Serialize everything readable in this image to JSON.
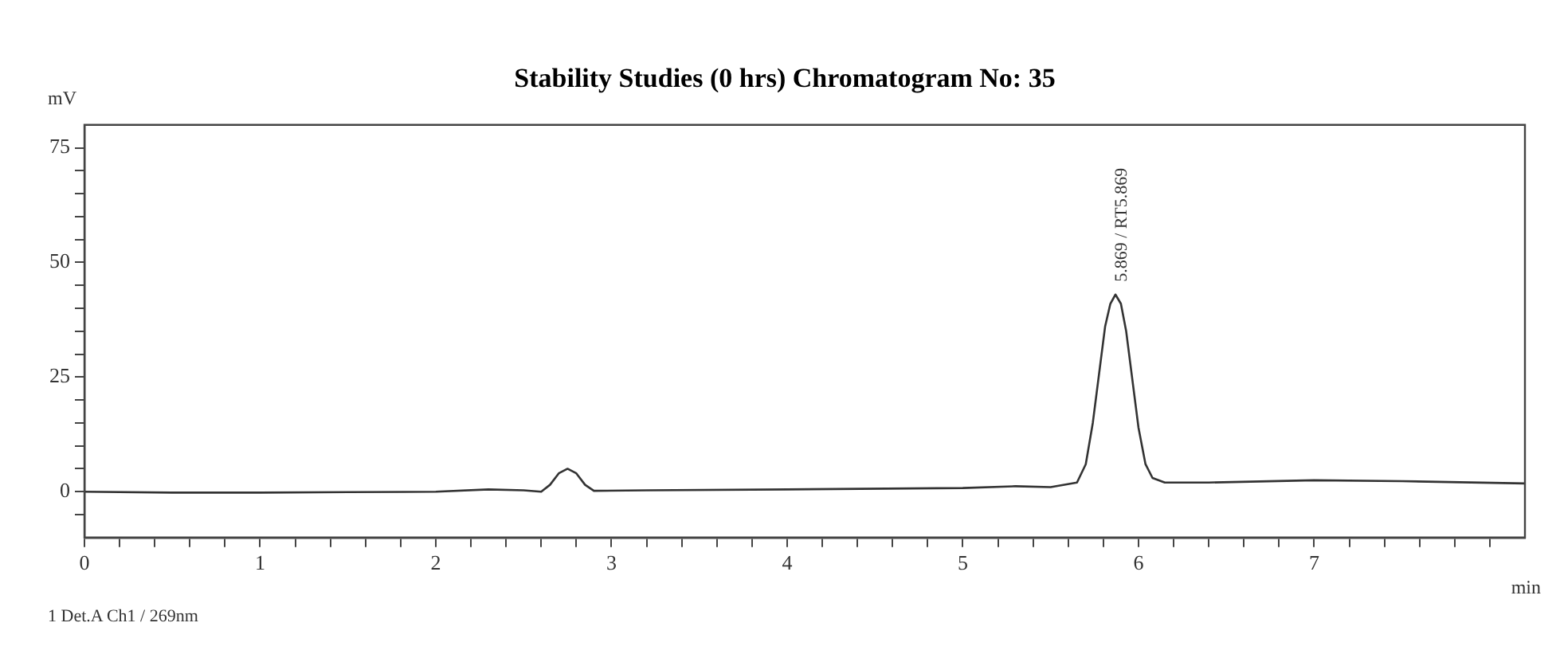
{
  "chart_data": {
    "type": "line",
    "title": "Stability Studies (0 hrs) Chromatogram No: 35",
    "xlabel": "min",
    "ylabel": "mV",
    "annotations": [
      {
        "text": "5.869 / RT5.869",
        "x": 5.869,
        "y": 43
      },
      "1 Det.A Ch1 / 269nm"
    ],
    "x": [
      0,
      0.5,
      1,
      1.5,
      2,
      2.3,
      2.5,
      2.6,
      2.65,
      2.7,
      2.75,
      2.8,
      2.85,
      2.9,
      3.2,
      4,
      5,
      5.3,
      5.5,
      5.65,
      5.7,
      5.74,
      5.78,
      5.81,
      5.84,
      5.869,
      5.9,
      5.93,
      5.96,
      6.0,
      6.04,
      6.08,
      6.15,
      6.4,
      7,
      7.5,
      8.2
    ],
    "series": [
      {
        "color": "#333333",
        "values": [
          0,
          -0.2,
          -0.2,
          -0.1,
          0,
          0.5,
          0.3,
          0,
          1.5,
          4,
          5,
          4,
          1.5,
          0.2,
          0.3,
          0.5,
          0.8,
          1.2,
          1,
          2,
          6,
          15,
          27,
          36,
          41,
          43,
          41,
          35,
          26,
          14,
          6,
          3,
          2,
          2,
          2.5,
          2.3,
          1.8
        ]
      }
    ],
    "xlim": [
      0,
      8.2
    ],
    "ylim": [
      -10,
      80
    ],
    "xticks": [
      0,
      {
        "value": 0.2,
        "label": null
      },
      {
        "value": 0.4,
        "label": null
      },
      {
        "value": 0.6,
        "label": null
      },
      {
        "value": 0.8,
        "label": null
      },
      1,
      {
        "value": 1.2,
        "label": null
      },
      {
        "value": 1.4,
        "label": null
      },
      {
        "value": 1.6,
        "label": null
      },
      {
        "value": 1.8,
        "label": null
      },
      2,
      {
        "value": 2.2,
        "label": null
      },
      {
        "value": 2.4,
        "label": null
      },
      {
        "value": 2.6,
        "label": null
      },
      {
        "value": 2.8,
        "label": null
      },
      3,
      {
        "value": 3.2,
        "label": null
      },
      {
        "value": 3.4,
        "label": null
      },
      {
        "value": 3.6,
        "label": null
      },
      {
        "value": 3.8,
        "label": null
      },
      4,
      {
        "value": 4.2,
        "label": null
      },
      {
        "value": 4.4,
        "label": null
      },
      {
        "value": 4.6,
        "label": null
      },
      {
        "value": 4.8,
        "label": null
      },
      5,
      {
        "value": 5.2,
        "label": null
      },
      {
        "value": 5.4,
        "label": null
      },
      {
        "value": 5.6,
        "label": null
      },
      {
        "value": 5.8,
        "label": null
      },
      6,
      {
        "value": 6.2,
        "label": null
      },
      {
        "value": 6.4,
        "label": null
      },
      {
        "value": 6.6,
        "label": null
      },
      {
        "value": 6.8,
        "label": null
      },
      7,
      {
        "value": 7.2,
        "label": null
      },
      {
        "value": 7.4,
        "label": null
      },
      {
        "value": 7.6,
        "label": null
      },
      {
        "value": 7.8,
        "label": null
      },
      {
        "value": 8,
        "label": null
      }
    ],
    "yticks": [
      {
        "value": -5,
        "label": null
      },
      0,
      {
        "value": 5,
        "label": null
      },
      {
        "value": 10,
        "label": null
      },
      {
        "value": 15,
        "label": null
      },
      {
        "value": 20,
        "label": null
      },
      25,
      {
        "value": 30,
        "label": null
      },
      {
        "value": 35,
        "label": null
      },
      {
        "value": 40,
        "label": null
      },
      {
        "value": 45,
        "label": null
      },
      50,
      {
        "value": 55,
        "label": null
      },
      {
        "value": 60,
        "label": null
      },
      {
        "value": 65,
        "label": null
      },
      {
        "value": 70,
        "label": null
      },
      75
    ],
    "grid": false,
    "legend": false,
    "marker": "none",
    "line_style": "solid"
  }
}
